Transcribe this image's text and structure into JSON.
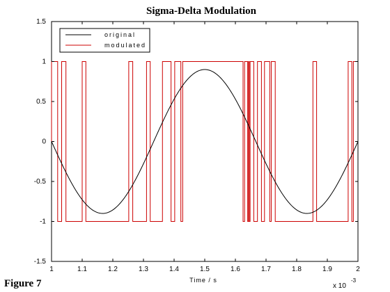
{
  "window": {
    "figure_label": "Figure 7"
  },
  "chart_data": {
    "type": "line",
    "title": "Sigma-Delta Modulation",
    "xlabel": "Time / s",
    "ylabel": "",
    "x_multiplier_label": "x 10",
    "x_multiplier_exponent": "-3",
    "xlim": [
      1,
      2
    ],
    "ylim": [
      -1.5,
      1.5
    ],
    "xticks": [
      1,
      1.1,
      1.2,
      1.3,
      1.4,
      1.5,
      1.6,
      1.7,
      1.8,
      1.9,
      2
    ],
    "xtick_labels": [
      "1",
      "1.1",
      "1.2",
      "1.3",
      "1.4",
      "1.5",
      "1.6",
      "1.7",
      "1.8",
      "1.9",
      "2"
    ],
    "yticks": [
      -1.5,
      -1,
      -0.5,
      0,
      0.5,
      1,
      1.5
    ],
    "ytick_labels": [
      "-1.5",
      "-1",
      "-0.5",
      "0",
      "0.5",
      "1",
      "1.5"
    ],
    "grid": false,
    "legend_position": "top-left",
    "series": [
      {
        "name": "original",
        "color": "#000000",
        "style": "line",
        "amplitude": 0.9,
        "period": 0.6667,
        "phase_start": 1,
        "description_formula": "y = -0.9 * sin(2*pi*(x-1)/0.6667)"
      },
      {
        "name": "modulated",
        "color": "#cc0000",
        "style": "step",
        "levels": [
          1,
          -1
        ],
        "transitions": [
          {
            "x": 1.0,
            "y": 1
          },
          {
            "x": 1.02,
            "y": -1
          },
          {
            "x": 1.033,
            "y": 1
          },
          {
            "x": 1.047,
            "y": -1
          },
          {
            "x": 1.1,
            "y": 1
          },
          {
            "x": 1.112,
            "y": -1
          },
          {
            "x": 1.252,
            "y": 1
          },
          {
            "x": 1.265,
            "y": -1
          },
          {
            "x": 1.31,
            "y": 1
          },
          {
            "x": 1.322,
            "y": -1
          },
          {
            "x": 1.362,
            "y": 1
          },
          {
            "x": 1.39,
            "y": -1
          },
          {
            "x": 1.402,
            "y": 1
          },
          {
            "x": 1.422,
            "y": -1
          },
          {
            "x": 1.428,
            "y": 1
          },
          {
            "x": 1.625,
            "y": -1
          },
          {
            "x": 1.63,
            "y": 1
          },
          {
            "x": 1.64,
            "y": -1
          },
          {
            "x": 1.643,
            "y": 1
          },
          {
            "x": 1.645,
            "y": -1
          },
          {
            "x": 1.648,
            "y": 1
          },
          {
            "x": 1.66,
            "y": -1
          },
          {
            "x": 1.672,
            "y": 1
          },
          {
            "x": 1.685,
            "y": -1
          },
          {
            "x": 1.695,
            "y": 1
          },
          {
            "x": 1.712,
            "y": -1
          },
          {
            "x": 1.717,
            "y": 1
          },
          {
            "x": 1.73,
            "y": -1
          },
          {
            "x": 1.853,
            "y": 1
          },
          {
            "x": 1.865,
            "y": -1
          },
          {
            "x": 1.968,
            "y": 1
          },
          {
            "x": 1.98,
            "y": -1
          },
          {
            "x": 1.985,
            "y": 1
          },
          {
            "x": 2.0,
            "y": 1
          }
        ]
      }
    ]
  }
}
